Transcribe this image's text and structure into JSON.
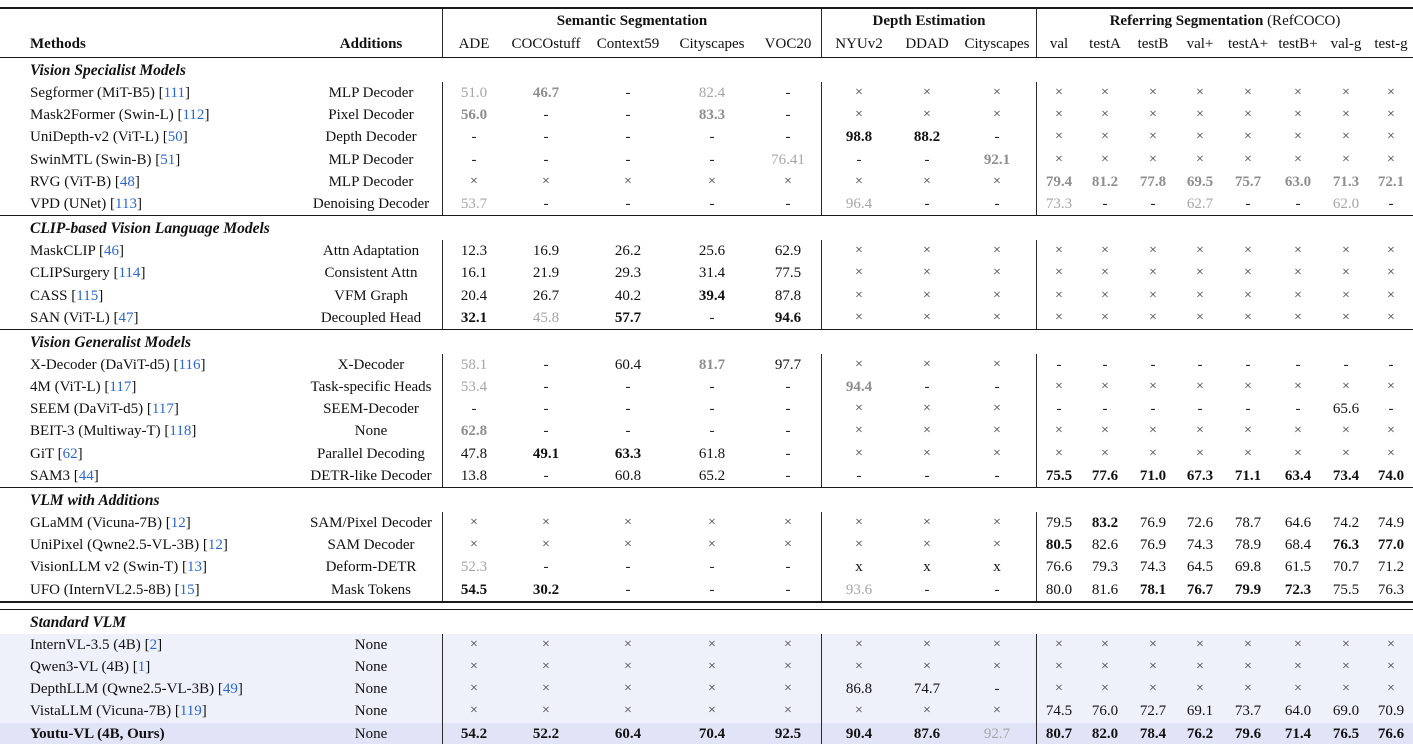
{
  "colors": {
    "citation_link": "#2b66cf",
    "gray_value": "#a6a6a6",
    "gray_value_bold": "#8e8e8e",
    "highlight_light": "#eef0fa",
    "highlight_strong": "#e1e3f6"
  },
  "header": {
    "col1": "Methods",
    "col2": "Additions",
    "groups": [
      {
        "title": "Semantic Segmentation",
        "suffix": "",
        "cols": [
          "ADE",
          "COCOstuff",
          "Context59",
          "Cityscapes",
          "VOC20"
        ]
      },
      {
        "title": "Depth Estimation",
        "suffix": "",
        "cols": [
          "NYUv2",
          "DDAD",
          "Cityscapes"
        ]
      },
      {
        "title": "Referring Segmentation",
        "suffix": " (RefCOCO)",
        "cols": [
          "val",
          "testA",
          "testB",
          "val+",
          "testA+",
          "testB+",
          "val-g",
          "test-g"
        ]
      }
    ]
  },
  "sections": [
    {
      "label": "Vision Specialist Models",
      "divider": "none",
      "rows": [
        {
          "method": "Segformer (MiT-B5)",
          "cite": "111",
          "addition": "MLP Decoder",
          "cells": [
            {
              "t": "51.0",
              "s": "g"
            },
            {
              "t": "46.7",
              "s": "gb"
            },
            "-",
            {
              "t": "82.4",
              "s": "g"
            },
            "-",
            "×",
            "×",
            "×",
            "×",
            "×",
            "×",
            "×",
            "×",
            "×",
            "×",
            "×"
          ]
        },
        {
          "method": "Mask2Former (Swin-L)",
          "cite": "112",
          "addition": "Pixel Decoder",
          "cells": [
            {
              "t": "56.0",
              "s": "gb"
            },
            "-",
            "-",
            {
              "t": "83.3",
              "s": "gb"
            },
            "-",
            "×",
            "×",
            "×",
            "×",
            "×",
            "×",
            "×",
            "×",
            "×",
            "×",
            "×"
          ]
        },
        {
          "method": "UniDepth-v2 (ViT-L)",
          "cite": "50",
          "addition": "Depth Decoder",
          "cells": [
            "-",
            "-",
            "-",
            "-",
            "-",
            {
              "t": "98.8",
              "s": "b"
            },
            {
              "t": "88.2",
              "s": "b"
            },
            "-",
            "×",
            "×",
            "×",
            "×",
            "×",
            "×",
            "×",
            "×"
          ]
        },
        {
          "method": "SwinMTL (Swin-B)",
          "cite": "51",
          "addition": "MLP Decoder",
          "cells": [
            "-",
            "-",
            "-",
            "-",
            {
              "t": "76.41",
              "s": "g"
            },
            "-",
            "-",
            {
              "t": "92.1",
              "s": "gb"
            },
            "×",
            "×",
            "×",
            "×",
            "×",
            "×",
            "×",
            "×"
          ]
        },
        {
          "method": "RVG (ViT-B)",
          "cite": "48",
          "addition": "MLP Decoder",
          "cells": [
            "×",
            "×",
            "×",
            "×",
            "×",
            "×",
            "×",
            "×",
            {
              "t": "79.4",
              "s": "gb"
            },
            {
              "t": "81.2",
              "s": "gb"
            },
            {
              "t": "77.8",
              "s": "gb"
            },
            {
              "t": "69.5",
              "s": "gb"
            },
            {
              "t": "75.7",
              "s": "gb"
            },
            {
              "t": "63.0",
              "s": "gb"
            },
            {
              "t": "71.3",
              "s": "gb"
            },
            {
              "t": "72.1",
              "s": "gb"
            }
          ]
        },
        {
          "method": "VPD (UNet)",
          "cite": "113",
          "addition": "Denoising Decoder",
          "cells": [
            {
              "t": "53.7",
              "s": "g"
            },
            "-",
            "-",
            "-",
            "-",
            {
              "t": "96.4",
              "s": "g"
            },
            "-",
            "-",
            {
              "t": "73.3",
              "s": "g"
            },
            "-",
            "-",
            {
              "t": "62.7",
              "s": "g"
            },
            "-",
            "-",
            {
              "t": "62.0",
              "s": "g"
            },
            "-"
          ]
        }
      ]
    },
    {
      "label": "CLIP-based Vision Language Models",
      "divider": "single",
      "rows": [
        {
          "method": "MaskCLIP",
          "cite": "46",
          "addition": "Attn Adaptation",
          "cells": [
            "12.3",
            "16.9",
            "26.2",
            "25.6",
            "62.9",
            "×",
            "×",
            "×",
            "×",
            "×",
            "×",
            "×",
            "×",
            "×",
            "×",
            "×"
          ]
        },
        {
          "method": "CLIPSurgery",
          "cite": "114",
          "addition": "Consistent Attn",
          "cells": [
            "16.1",
            "21.9",
            "29.3",
            "31.4",
            "77.5",
            "×",
            "×",
            "×",
            "×",
            "×",
            "×",
            "×",
            "×",
            "×",
            "×",
            "×"
          ]
        },
        {
          "method": "CASS",
          "cite": "115",
          "addition": "VFM Graph",
          "cells": [
            "20.4",
            "26.7",
            "40.2",
            {
              "t": "39.4",
              "s": "b"
            },
            "87.8",
            "×",
            "×",
            "×",
            "×",
            "×",
            "×",
            "×",
            "×",
            "×",
            "×",
            "×"
          ]
        },
        {
          "method": "SAN (ViT-L)",
          "cite": "47",
          "addition": "Decoupled Head",
          "cells": [
            {
              "t": "32.1",
              "s": "b"
            },
            {
              "t": "45.8",
              "s": "g"
            },
            {
              "t": "57.7",
              "s": "b"
            },
            "-",
            {
              "t": "94.6",
              "s": "b"
            },
            "×",
            "×",
            "×",
            "×",
            "×",
            "×",
            "×",
            "×",
            "×",
            "×",
            "×"
          ]
        }
      ]
    },
    {
      "label": "Vision Generalist Models",
      "divider": "single",
      "rows": [
        {
          "method": "X-Decoder (DaViT-d5)",
          "cite": "116",
          "addition": "X-Decoder",
          "cells": [
            {
              "t": "58.1",
              "s": "g"
            },
            "-",
            "60.4",
            {
              "t": "81.7",
              "s": "gb"
            },
            "97.7",
            "×",
            "×",
            "×",
            "-",
            "-",
            "-",
            "-",
            "-",
            "-",
            "-",
            "-"
          ]
        },
        {
          "method": "4M (ViT-L)",
          "cite": "117",
          "addition": "Task-specific Heads",
          "cells": [
            {
              "t": "53.4",
              "s": "g"
            },
            "-",
            "-",
            "-",
            "-",
            {
              "t": "94.4",
              "s": "gb"
            },
            "-",
            "-",
            "×",
            "×",
            "×",
            "×",
            "×",
            "×",
            "×",
            "×"
          ]
        },
        {
          "method": "SEEM (DaViT-d5)",
          "cite": "117",
          "addition": "SEEM-Decoder",
          "cells": [
            "-",
            "-",
            "-",
            "-",
            "-",
            "×",
            "×",
            "×",
            "-",
            "-",
            "-",
            "-",
            "-",
            "-",
            "65.6",
            "-"
          ]
        },
        {
          "method": "BEIT-3 (Multiway-T)",
          "cite": "118",
          "addition": "None",
          "cells": [
            {
              "t": "62.8",
              "s": "gb"
            },
            "-",
            "-",
            "-",
            "-",
            "×",
            "×",
            "×",
            "×",
            "×",
            "×",
            "×",
            "×",
            "×",
            "×",
            "×"
          ]
        },
        {
          "method": "GiT",
          "cite": "62",
          "addition": "Parallel Decoding",
          "cells": [
            "47.8",
            {
              "t": "49.1",
              "s": "b"
            },
            {
              "t": "63.3",
              "s": "b"
            },
            "61.8",
            "-",
            "×",
            "×",
            "×",
            "×",
            "×",
            "×",
            "×",
            "×",
            "×",
            "×",
            "×"
          ]
        },
        {
          "method": "SAM3",
          "cite": "44",
          "addition": "DETR-like Decoder",
          "cells": [
            "13.8",
            "-",
            "60.8",
            "65.2",
            "-",
            "-",
            "-",
            "-",
            {
              "t": "75.5",
              "s": "b"
            },
            {
              "t": "77.6",
              "s": "b"
            },
            {
              "t": "71.0",
              "s": "b"
            },
            {
              "t": "67.3",
              "s": "b"
            },
            {
              "t": "71.1",
              "s": "b"
            },
            {
              "t": "63.4",
              "s": "b"
            },
            {
              "t": "73.4",
              "s": "b"
            },
            {
              "t": "74.0",
              "s": "b"
            }
          ]
        }
      ]
    },
    {
      "label": "VLM with Additions",
      "divider": "single",
      "rows": [
        {
          "method": "GLaMM (Vicuna-7B)",
          "cite": "12",
          "addition": "SAM/Pixel Decoder",
          "cells": [
            "×",
            "×",
            "×",
            "×",
            "×",
            "×",
            "×",
            "×",
            "79.5",
            {
              "t": "83.2",
              "s": "b"
            },
            "76.9",
            "72.6",
            "78.7",
            "64.6",
            "74.2",
            "74.9"
          ]
        },
        {
          "method": "UniPixel (Qwne2.5-VL-3B)",
          "cite": "12",
          "addition": "SAM Decoder",
          "cells": [
            "×",
            "×",
            "×",
            "×",
            "×",
            "×",
            "×",
            "×",
            {
              "t": "80.5",
              "s": "b"
            },
            "82.6",
            "76.9",
            "74.3",
            "78.9",
            "68.4",
            {
              "t": "76.3",
              "s": "b"
            },
            {
              "t": "77.0",
              "s": "b"
            }
          ]
        },
        {
          "method": "VisionLLM v2 (Swin-T)",
          "cite": "13",
          "addition": "Deform-DETR",
          "cells": [
            {
              "t": "52.3",
              "s": "g"
            },
            "-",
            "-",
            "-",
            "-",
            "x",
            "x",
            "x",
            "76.6",
            "79.3",
            "74.3",
            "64.5",
            "69.8",
            "61.5",
            "70.7",
            "71.2"
          ]
        },
        {
          "method": "UFO (InternVL2.5-8B)",
          "cite": "15",
          "addition": "Mask Tokens",
          "cells": [
            {
              "t": "54.5",
              "s": "b"
            },
            {
              "t": "30.2",
              "s": "b"
            },
            "-",
            "-",
            "-",
            {
              "t": "93.6",
              "s": "g"
            },
            "-",
            "-",
            "80.0",
            "81.6",
            {
              "t": "78.1",
              "s": "b"
            },
            {
              "t": "76.7",
              "s": "b"
            },
            {
              "t": "79.9",
              "s": "b"
            },
            {
              "t": "72.3",
              "s": "b"
            },
            "75.5",
            "76.3"
          ]
        }
      ]
    },
    {
      "label": "Standard VLM",
      "divider": "double",
      "rows": [
        {
          "method": "InternVL-3.5 (4B)",
          "cite": "2",
          "addition": "None",
          "bg": "light",
          "cells": [
            "×",
            "×",
            "×",
            "×",
            "×",
            "×",
            "×",
            "×",
            "×",
            "×",
            "×",
            "×",
            "×",
            "×",
            "×",
            "×"
          ]
        },
        {
          "method": "Qwen3-VL (4B)",
          "cite": "1",
          "addition": "None",
          "bg": "light",
          "cells": [
            "×",
            "×",
            "×",
            "×",
            "×",
            "×",
            "×",
            "×",
            "×",
            "×",
            "×",
            "×",
            "×",
            "×",
            "×",
            "×"
          ]
        },
        {
          "method": "DepthLLM (Qwne2.5-VL-3B)",
          "cite": "49",
          "addition": "None",
          "bg": "light",
          "cells": [
            "×",
            "×",
            "×",
            "×",
            "×",
            "86.8",
            "74.7",
            "-",
            "×",
            "×",
            "×",
            "×",
            "×",
            "×",
            "×",
            "×"
          ]
        },
        {
          "method": "VistaLLM (Vicuna-7B)",
          "cite": "119",
          "addition": "None",
          "bg": "light",
          "cells": [
            "×",
            "×",
            "×",
            "×",
            "×",
            "×",
            "×",
            "×",
            "74.5",
            "76.0",
            "72.7",
            "69.1",
            "73.7",
            "64.0",
            "69.0",
            "70.9"
          ]
        },
        {
          "method": "Youtu-VL (4B, Ours)",
          "cite": null,
          "bold": true,
          "addition": "None",
          "bg": "strong",
          "cells": [
            {
              "t": "54.2",
              "s": "b"
            },
            {
              "t": "52.2",
              "s": "b"
            },
            {
              "t": "60.4",
              "s": "b"
            },
            {
              "t": "70.4",
              "s": "b"
            },
            {
              "t": "92.5",
              "s": "b"
            },
            {
              "t": "90.4",
              "s": "b"
            },
            {
              "t": "87.6",
              "s": "b"
            },
            {
              "t": "92.7",
              "s": "g"
            },
            {
              "t": "80.7",
              "s": "b"
            },
            {
              "t": "82.0",
              "s": "b"
            },
            {
              "t": "78.4",
              "s": "b"
            },
            {
              "t": "76.2",
              "s": "b"
            },
            {
              "t": "79.6",
              "s": "b"
            },
            {
              "t": "71.4",
              "s": "b"
            },
            {
              "t": "76.5",
              "s": "b"
            },
            {
              "t": "76.6",
              "s": "b"
            }
          ]
        }
      ]
    }
  ]
}
